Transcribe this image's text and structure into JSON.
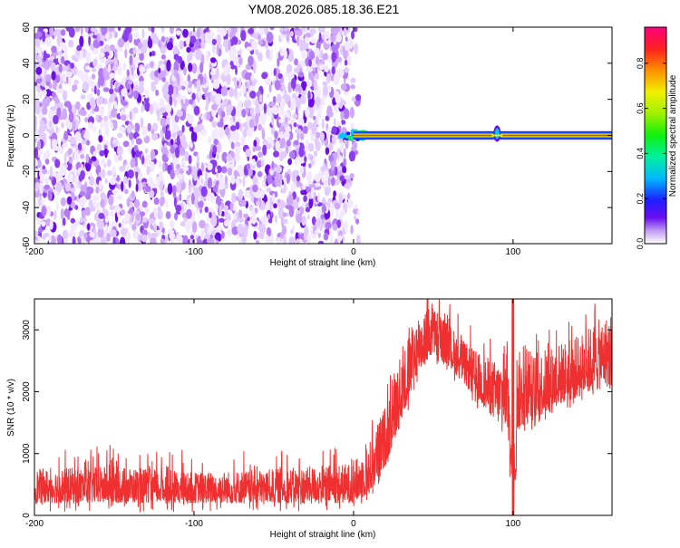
{
  "title": "YM08.2026.085.18.36.E21",
  "chart_data": [
    {
      "type": "heatmap",
      "xlabel": "Height of straight line (km)",
      "ylabel": "Frequency (Hz)",
      "xlim": [
        -200,
        162
      ],
      "ylim": [
        -60,
        60
      ],
      "xticks": [
        -200,
        -100,
        0,
        100
      ],
      "yticks": [
        -60,
        -40,
        -20,
        0,
        20,
        40,
        60
      ],
      "colorbar": {
        "label": "Normalized spectral amplitude",
        "range": [
          0,
          0.96
        ],
        "ticks": [
          0,
          0.2,
          0.4,
          0.6,
          0.8
        ]
      },
      "grid": false,
      "features": {
        "noise_region_x": [
          -200,
          0
        ],
        "carrier_line_x": [
          0,
          162
        ],
        "carrier_frequency": 0,
        "spike_at_x": 90
      }
    },
    {
      "type": "line",
      "xlabel": "Height of straight line (km)",
      "ylabel": "SNR (10 * v/v)",
      "xlim": [
        -200,
        162
      ],
      "ylim": [
        0,
        3500
      ],
      "xticks": [
        -200,
        -100,
        0,
        100
      ],
      "yticks": [
        0,
        1000,
        2000,
        3000
      ],
      "grid": false,
      "color": "#f03030",
      "envelope": {
        "x": [
          -200,
          -150,
          -100,
          -50,
          0,
          10,
          20,
          30,
          40,
          50,
          60,
          70,
          80,
          90,
          100,
          110,
          120,
          130,
          140,
          150,
          162
        ],
        "low": [
          200,
          200,
          200,
          200,
          200,
          350,
          800,
          1500,
          2300,
          2600,
          2400,
          2100,
          1800,
          1500,
          1300,
          1500,
          1650,
          1800,
          1900,
          2000,
          2100
        ],
        "high": [
          750,
          800,
          700,
          750,
          850,
          1200,
          1800,
          2600,
          3300,
          3400,
          3100,
          2800,
          2600,
          2500,
          2700,
          2600,
          2700,
          2800,
          2900,
          3100,
          3300
        ]
      },
      "dip_at_x": 100
    }
  ]
}
